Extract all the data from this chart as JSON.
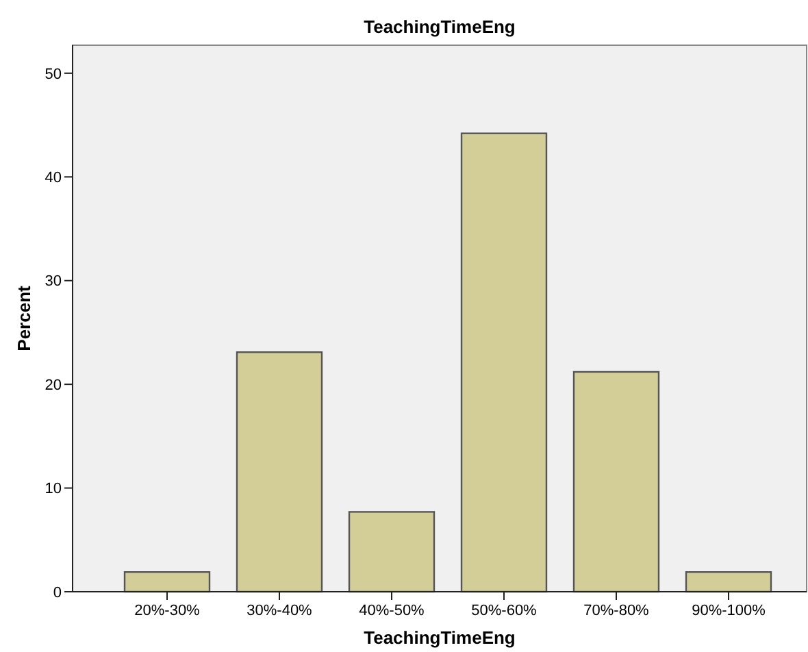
{
  "chart_data": {
    "type": "bar",
    "title": "TeachingTimeEng",
    "xlabel": "TeachingTimeEng",
    "ylabel": "Percent",
    "categories": [
      "20%-30%",
      "30%-40%",
      "40%-50%",
      "50%-60%",
      "70%-80%",
      "90%-100%"
    ],
    "values": [
      1.9,
      23.1,
      7.7,
      44.2,
      21.2,
      1.9
    ],
    "color": "#d3ce97",
    "ylim": [
      0,
      52.7
    ],
    "yticks": [
      0,
      10,
      20,
      30,
      40,
      50
    ],
    "grid": false
  }
}
